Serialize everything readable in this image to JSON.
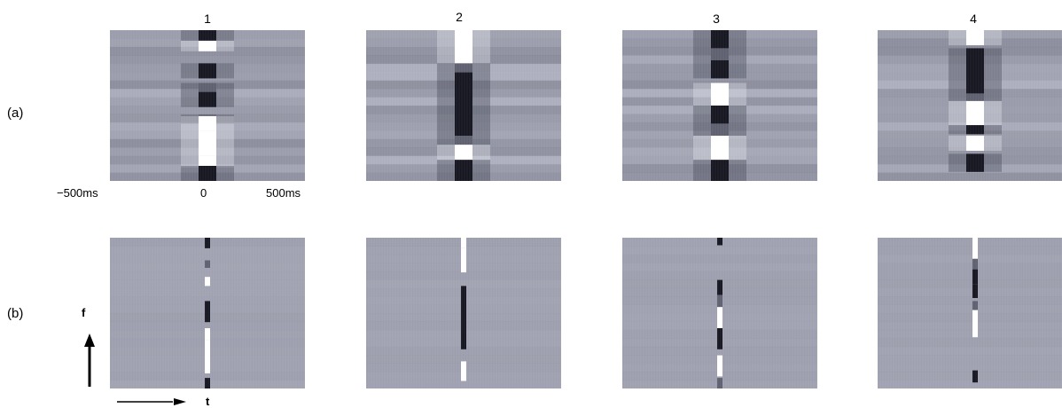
{
  "columns": [
    "1",
    "2",
    "3",
    "4"
  ],
  "rows": [
    "(a)",
    "(b)"
  ],
  "time_axis": {
    "left": "−500ms",
    "center": "0",
    "right": "500ms"
  },
  "axis_arrows": {
    "vertical": "f",
    "horizontal": "t"
  },
  "colors": {
    "panel_base": "#a3a6b6",
    "dark_band": "#161620",
    "light_band": "#ffffff"
  },
  "panels": [
    {
      "id": "a1",
      "bands": [
        {
          "y": 0,
          "h": 0.07,
          "kind": "dark"
        },
        {
          "y": 0.07,
          "h": 0.07,
          "kind": "light"
        },
        {
          "y": 0.22,
          "h": 0.1,
          "kind": "dark"
        },
        {
          "y": 0.35,
          "h": 0.06,
          "kind": "mid"
        },
        {
          "y": 0.41,
          "h": 0.1,
          "kind": "dark"
        },
        {
          "y": 0.56,
          "h": 0.06,
          "kind": "mid"
        },
        {
          "y": 0.57,
          "h": 0.1,
          "kind": "light"
        },
        {
          "y": 0.67,
          "h": 0.08,
          "kind": "light"
        },
        {
          "y": 0.75,
          "h": 0.08,
          "kind": "light"
        },
        {
          "y": 0.83,
          "h": 0.08,
          "kind": "light"
        },
        {
          "y": 0.9,
          "h": 0.1,
          "kind": "dark"
        }
      ]
    },
    {
      "id": "a2",
      "bands": [
        {
          "y": 0,
          "h": 0.1,
          "kind": "light"
        },
        {
          "y": 0.1,
          "h": 0.12,
          "kind": "light"
        },
        {
          "y": 0.22,
          "h": 0.06,
          "kind": "mid"
        },
        {
          "y": 0.28,
          "h": 0.42,
          "kind": "dark"
        },
        {
          "y": 0.7,
          "h": 0.06,
          "kind": "mid"
        },
        {
          "y": 0.76,
          "h": 0.1,
          "kind": "light"
        },
        {
          "y": 0.86,
          "h": 0.14,
          "kind": "dark"
        }
      ]
    },
    {
      "id": "a3",
      "bands": [
        {
          "y": 0,
          "h": 0.12,
          "kind": "dark"
        },
        {
          "y": 0.12,
          "h": 0.08,
          "kind": "mid"
        },
        {
          "y": 0.2,
          "h": 0.12,
          "kind": "dark"
        },
        {
          "y": 0.35,
          "h": 0.15,
          "kind": "light"
        },
        {
          "y": 0.5,
          "h": 0.12,
          "kind": "dark"
        },
        {
          "y": 0.62,
          "h": 0.08,
          "kind": "mid"
        },
        {
          "y": 0.7,
          "h": 0.16,
          "kind": "light"
        },
        {
          "y": 0.86,
          "h": 0.14,
          "kind": "dark"
        }
      ]
    },
    {
      "id": "a4",
      "bands": [
        {
          "y": 0,
          "h": 0.1,
          "kind": "light"
        },
        {
          "y": 0.12,
          "h": 0.3,
          "kind": "dark"
        },
        {
          "y": 0.42,
          "h": 0.05,
          "kind": "mid"
        },
        {
          "y": 0.47,
          "h": 0.16,
          "kind": "light"
        },
        {
          "y": 0.63,
          "h": 0.06,
          "kind": "dark"
        },
        {
          "y": 0.7,
          "h": 0.1,
          "kind": "light"
        },
        {
          "y": 0.82,
          "h": 0.12,
          "kind": "dark"
        }
      ]
    },
    {
      "id": "b1",
      "bands": [
        {
          "y": 0,
          "h": 0.07,
          "kind": "dark"
        },
        {
          "y": 0.15,
          "h": 0.05,
          "kind": "mid"
        },
        {
          "y": 0.26,
          "h": 0.06,
          "kind": "light"
        },
        {
          "y": 0.42,
          "h": 0.14,
          "kind": "dark"
        },
        {
          "y": 0.6,
          "h": 0.08,
          "kind": "light"
        },
        {
          "y": 0.68,
          "h": 0.22,
          "kind": "light"
        },
        {
          "y": 0.93,
          "h": 0.07,
          "kind": "dark"
        }
      ]
    },
    {
      "id": "b2",
      "bands": [
        {
          "y": 0,
          "h": 0.07,
          "kind": "light"
        },
        {
          "y": 0.07,
          "h": 0.16,
          "kind": "light"
        },
        {
          "y": 0.32,
          "h": 0.42,
          "kind": "dark"
        },
        {
          "y": 0.82,
          "h": 0.13,
          "kind": "light"
        }
      ]
    },
    {
      "id": "b3",
      "bands": [
        {
          "y": 0,
          "h": 0.05,
          "kind": "dark"
        },
        {
          "y": 0.28,
          "h": 0.1,
          "kind": "dark"
        },
        {
          "y": 0.38,
          "h": 0.08,
          "kind": "mid"
        },
        {
          "y": 0.46,
          "h": 0.14,
          "kind": "light"
        },
        {
          "y": 0.6,
          "h": 0.14,
          "kind": "dark"
        },
        {
          "y": 0.78,
          "h": 0.14,
          "kind": "light"
        },
        {
          "y": 0.93,
          "h": 0.07,
          "kind": "mid"
        }
      ]
    },
    {
      "id": "b4",
      "bands": [
        {
          "y": 0,
          "h": 0.14,
          "kind": "light"
        },
        {
          "y": 0.14,
          "h": 0.07,
          "kind": "mid"
        },
        {
          "y": 0.21,
          "h": 0.1,
          "kind": "dark"
        },
        {
          "y": 0.31,
          "h": 0.09,
          "kind": "dark"
        },
        {
          "y": 0.42,
          "h": 0.06,
          "kind": "mid"
        },
        {
          "y": 0.48,
          "h": 0.18,
          "kind": "light"
        },
        {
          "y": 0.88,
          "h": 0.08,
          "kind": "dark"
        }
      ]
    }
  ]
}
